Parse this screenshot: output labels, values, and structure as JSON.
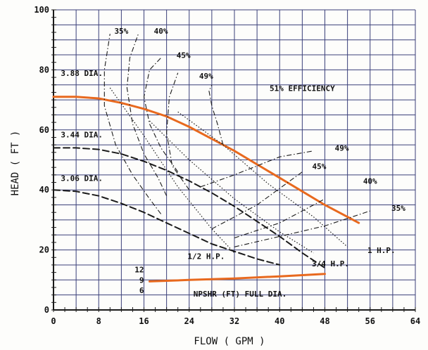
{
  "chart_data": {
    "type": "line",
    "title": "",
    "xlabel": "FLOW ( GPM )",
    "ylabel": "HEAD ( FT )",
    "xlim": [
      0,
      64
    ],
    "ylim": [
      0,
      100
    ],
    "x_ticks": [
      0,
      8,
      16,
      24,
      32,
      40,
      48,
      56,
      64
    ],
    "y_ticks": [
      0,
      20,
      40,
      60,
      80,
      100
    ],
    "grid": true,
    "colors": {
      "grid": "#3a3f7a",
      "curve_main": "#e8691e",
      "npsh": "#e8691e",
      "ink": "#1a1a1a"
    },
    "series": [
      {
        "name": "3.88 DIA.",
        "style": "solid-orange",
        "x": [
          0,
          4,
          8,
          12,
          16,
          20,
          24,
          28,
          32,
          36,
          40,
          44,
          48,
          52,
          54
        ],
        "y": [
          71,
          71,
          70.5,
          69,
          67,
          64.5,
          61,
          57,
          53,
          48.5,
          44,
          39.5,
          35,
          31,
          29
        ]
      },
      {
        "name": "3.44 DIA.",
        "style": "dashed",
        "x": [
          0,
          4,
          8,
          12,
          16,
          20,
          24,
          28,
          32,
          36,
          40,
          44,
          48
        ],
        "y": [
          54,
          54,
          53.5,
          52,
          49.5,
          46.5,
          43,
          39,
          34.5,
          29.5,
          24.5,
          19,
          14
        ]
      },
      {
        "name": "3.06 DIA.",
        "style": "dashed",
        "x": [
          0,
          4,
          8,
          12,
          16,
          20,
          24,
          28,
          32,
          36,
          40
        ],
        "y": [
          40,
          39.5,
          38,
          35.5,
          32.5,
          29,
          25.5,
          22,
          19.5,
          17,
          15
        ]
      },
      {
        "name": "NPSHR (FT) FULL DIA.",
        "style": "solid-orange",
        "x": [
          17,
          24,
          32,
          40,
          48
        ],
        "y": [
          9.5,
          10,
          10.5,
          11.2,
          12
        ]
      }
    ],
    "efficiency_curves": [
      {
        "name": "35%",
        "x": [
          19,
          17,
          14,
          11,
          9,
          9,
          10
        ],
        "y": [
          32,
          37,
          45,
          55,
          68,
          80,
          92
        ]
      },
      {
        "name": "35%",
        "x": [
          32,
          40,
          48,
          56
        ],
        "y": [
          21,
          24.5,
          28,
          33
        ]
      },
      {
        "name": "40%",
        "x": [
          20,
          18.5,
          16,
          14,
          13,
          13.5,
          15
        ],
        "y": [
          38,
          44,
          52,
          62,
          74,
          84,
          92
        ]
      },
      {
        "name": "40%",
        "x": [
          32,
          40,
          48
        ],
        "y": [
          24,
          29,
          37
        ]
      },
      {
        "name": "45%",
        "x": [
          22,
          19,
          17,
          16,
          17,
          19
        ],
        "y": [
          46,
          54,
          62,
          71,
          80,
          84
        ]
      },
      {
        "name": "45%",
        "x": [
          28,
          36,
          44
        ],
        "y": [
          27,
          35,
          46
        ]
      },
      {
        "name": "49%",
        "x": [
          24,
          21,
          20,
          20.5,
          22
        ],
        "y": [
          40,
          48,
          59,
          71,
          79
        ]
      },
      {
        "name": "49%",
        "x": [
          26,
          32,
          40,
          46
        ],
        "y": [
          41,
          45,
          51,
          53
        ]
      },
      {
        "name": "51% EFFICIENCY",
        "x": [
          30,
          29,
          28,
          27.5,
          28
        ],
        "y": [
          55,
          62,
          68,
          73,
          75
        ]
      }
    ],
    "power_lines": [
      {
        "name": "1/2 H.P.",
        "x": [
          10,
          16,
          22,
          28,
          32
        ],
        "y": [
          74,
          58,
          41,
          27,
          19
        ]
      },
      {
        "name": "3/4 H.P.",
        "x": [
          17,
          24,
          32,
          40,
          46
        ],
        "y": [
          63,
          50,
          37,
          26,
          19
        ]
      },
      {
        "name": "1 H.P.",
        "x": [
          22,
          30,
          38,
          46,
          52
        ],
        "y": [
          66,
          55,
          42,
          31,
          21
        ]
      }
    ],
    "npsh_scale": {
      "labels": [
        "12",
        "9",
        "6"
      ]
    },
    "annotations": [
      {
        "text": "35%",
        "x": 12,
        "y": 92
      },
      {
        "text": "40%",
        "x": 19,
        "y": 92
      },
      {
        "text": "45%",
        "x": 23,
        "y": 84
      },
      {
        "text": "49%",
        "x": 27,
        "y": 77
      },
      {
        "text": "51% EFFICIENCY",
        "x": 44,
        "y": 73
      },
      {
        "text": "3.88 DIA.",
        "x": 5,
        "y": 78
      },
      {
        "text": "3.44 DIA.",
        "x": 5,
        "y": 57.5
      },
      {
        "text": "3.06 DIA.",
        "x": 5,
        "y": 43
      },
      {
        "text": "49%",
        "x": 51,
        "y": 53
      },
      {
        "text": "45%",
        "x": 47,
        "y": 47
      },
      {
        "text": "40%",
        "x": 56,
        "y": 42
      },
      {
        "text": "35%",
        "x": 61,
        "y": 33
      },
      {
        "text": "1/2 H.P.",
        "x": 27,
        "y": 17
      },
      {
        "text": "3/4 H.P.",
        "x": 49,
        "y": 14.5
      },
      {
        "text": "1 H.P.",
        "x": 58,
        "y": 19
      },
      {
        "text": "NPSHR (FT) FULL DIA.",
        "x": 33,
        "y": 4.5
      }
    ]
  }
}
